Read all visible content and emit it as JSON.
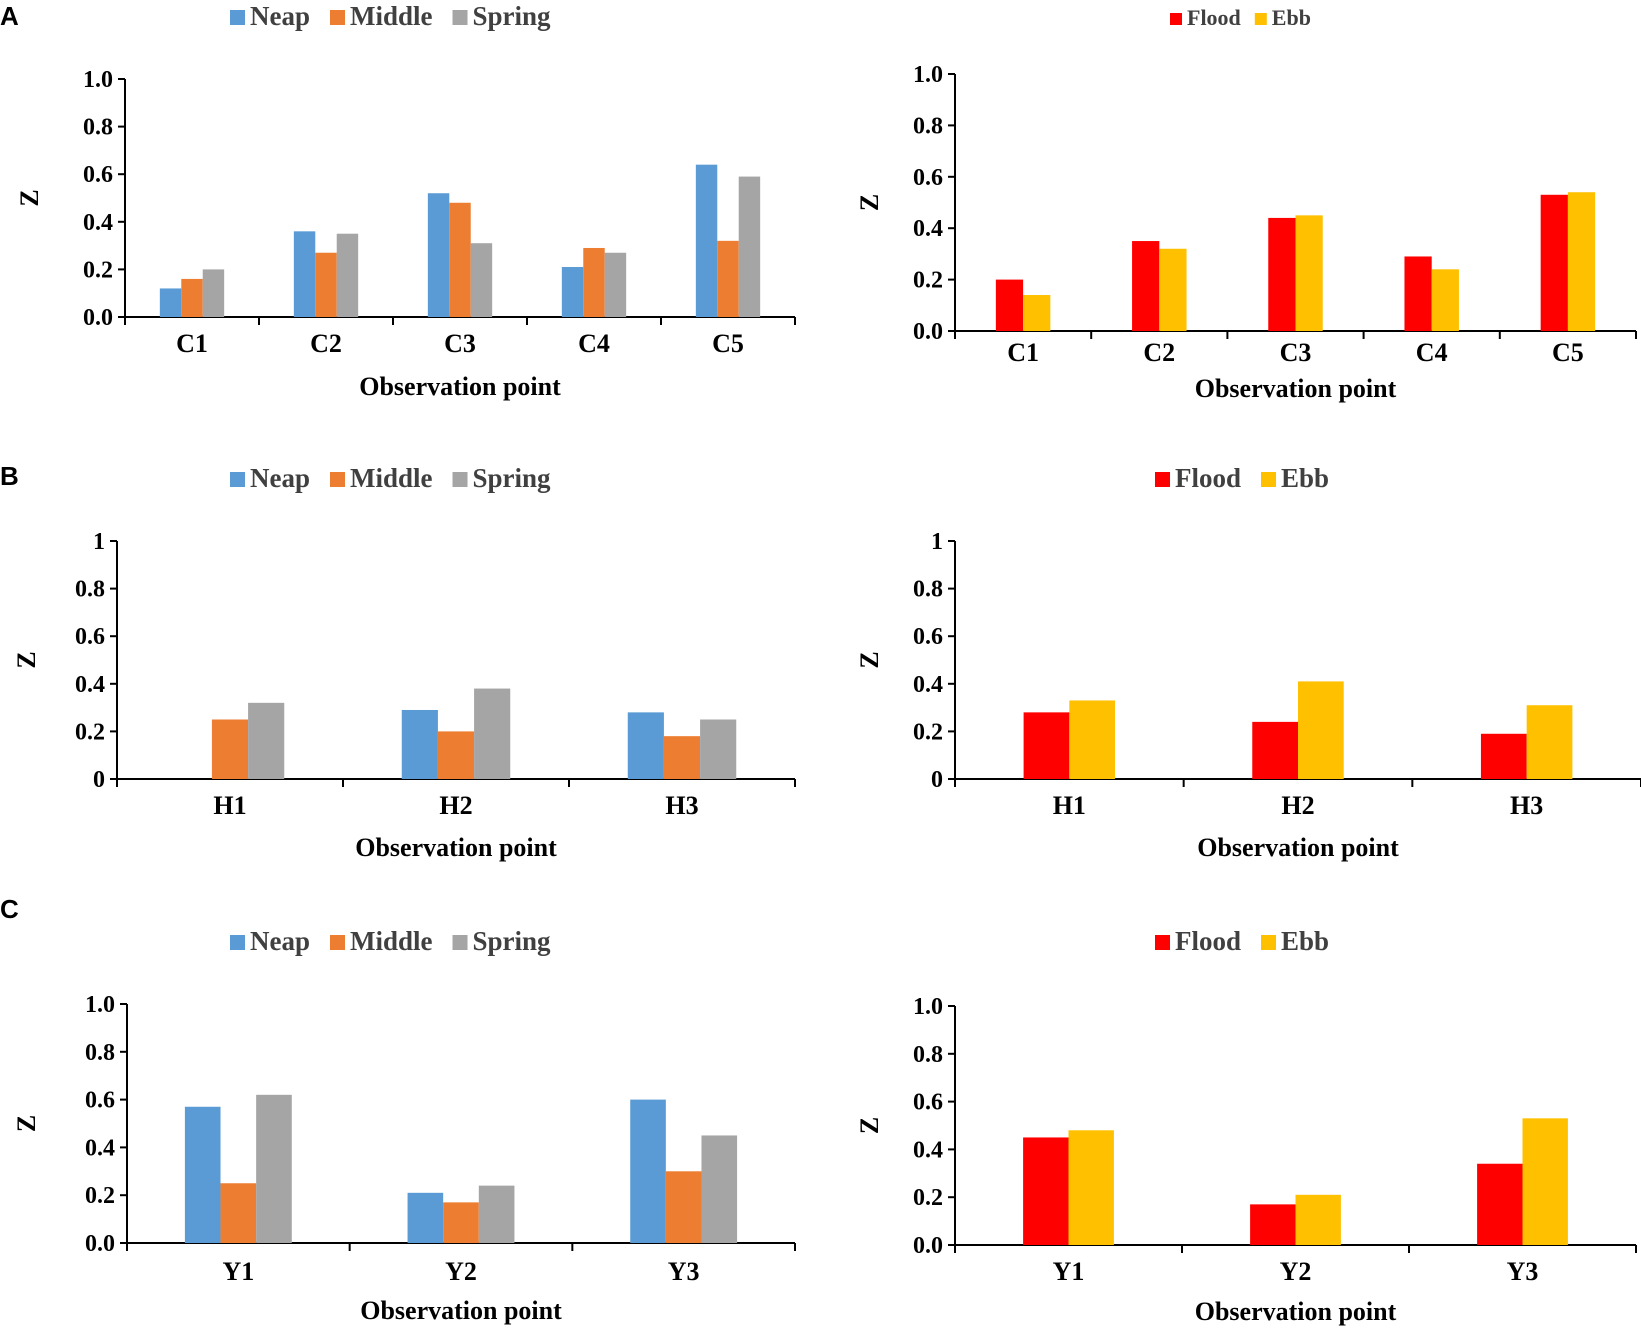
{
  "panel_labels": [
    "A",
    "B",
    "C"
  ],
  "colors": {
    "Neap": "#5b9bd5",
    "Middle": "#ed7d31",
    "Spring": "#a5a5a5",
    "Flood": "#ff0000",
    "Ebb": "#ffc000"
  },
  "chart_data": [
    {
      "id": "A-left",
      "type": "bar",
      "categories": [
        "C1",
        "C2",
        "C3",
        "C4",
        "C5"
      ],
      "series": [
        {
          "name": "Neap",
          "values": [
            0.12,
            0.36,
            0.52,
            0.21,
            0.64
          ]
        },
        {
          "name": "Middle",
          "values": [
            0.16,
            0.27,
            0.48,
            0.29,
            0.32
          ]
        },
        {
          "name": "Spring",
          "values": [
            0.2,
            0.35,
            0.31,
            0.27,
            0.59
          ]
        }
      ],
      "ylim": [
        0,
        1.0
      ],
      "yticks": [
        "0.0",
        "0.2",
        "0.4",
        "0.6",
        "0.8",
        "1.0"
      ],
      "xlabel": "Observation point",
      "ylabel": "Z",
      "legend": [
        "Neap",
        "Middle",
        "Spring"
      ]
    },
    {
      "id": "A-right",
      "type": "bar",
      "categories": [
        "C1",
        "C2",
        "C3",
        "C4",
        "C5"
      ],
      "series": [
        {
          "name": "Flood",
          "values": [
            0.2,
            0.35,
            0.44,
            0.29,
            0.53
          ]
        },
        {
          "name": "Ebb",
          "values": [
            0.14,
            0.32,
            0.45,
            0.24,
            0.54
          ]
        }
      ],
      "ylim": [
        0,
        1.0
      ],
      "yticks": [
        "0.0",
        "0.2",
        "0.4",
        "0.6",
        "0.8",
        "1.0"
      ],
      "xlabel": "Observation point",
      "ylabel": "Z",
      "legend": [
        "Flood",
        "Ebb"
      ]
    },
    {
      "id": "B-left",
      "type": "bar",
      "categories": [
        "H1",
        "H2",
        "H3"
      ],
      "series": [
        {
          "name": "Neap",
          "values": [
            0,
            0.29,
            0.28
          ]
        },
        {
          "name": "Middle",
          "values": [
            0.25,
            0.2,
            0.18
          ]
        },
        {
          "name": "Spring",
          "values": [
            0.32,
            0.38,
            0.25
          ]
        }
      ],
      "ylim": [
        0,
        1
      ],
      "yticks": [
        "0",
        "0.2",
        "0.4",
        "0.6",
        "0.8",
        "1"
      ],
      "xlabel": "Observation point",
      "ylabel": "Z",
      "legend": [
        "Neap",
        "Middle",
        "Spring"
      ]
    },
    {
      "id": "B-right",
      "type": "bar",
      "categories": [
        "H1",
        "H2",
        "H3"
      ],
      "series": [
        {
          "name": "Flood",
          "values": [
            0.28,
            0.24,
            0.19
          ]
        },
        {
          "name": "Ebb",
          "values": [
            0.33,
            0.41,
            0.31
          ]
        }
      ],
      "ylim": [
        0,
        1
      ],
      "yticks": [
        "0",
        "0.2",
        "0.4",
        "0.6",
        "0.8",
        "1"
      ],
      "xlabel": "Observation point",
      "ylabel": "Z",
      "legend": [
        "Flood",
        "Ebb"
      ]
    },
    {
      "id": "C-left",
      "type": "bar",
      "categories": [
        "Y1",
        "Y2",
        "Y3"
      ],
      "series": [
        {
          "name": "Neap",
          "values": [
            0.57,
            0.21,
            0.6
          ]
        },
        {
          "name": "Middle",
          "values": [
            0.25,
            0.17,
            0.3
          ]
        },
        {
          "name": "Spring",
          "values": [
            0.62,
            0.24,
            0.45
          ]
        }
      ],
      "ylim": [
        0,
        1.0
      ],
      "yticks": [
        "0.0",
        "0.2",
        "0.4",
        "0.6",
        "0.8",
        "1.0"
      ],
      "xlabel": "Observation point",
      "ylabel": "Z",
      "legend": [
        "Neap",
        "Middle",
        "Spring"
      ]
    },
    {
      "id": "C-right",
      "type": "bar",
      "categories": [
        "Y1",
        "Y2",
        "Y3"
      ],
      "series": [
        {
          "name": "Flood",
          "values": [
            0.45,
            0.17,
            0.34
          ]
        },
        {
          "name": "Ebb",
          "values": [
            0.48,
            0.21,
            0.53
          ]
        }
      ],
      "ylim": [
        0,
        1.0
      ],
      "yticks": [
        "0.0",
        "0.2",
        "0.4",
        "0.6",
        "0.8",
        "1.0"
      ],
      "xlabel": "Observation point",
      "ylabel": "Z",
      "legend": [
        "Flood",
        "Ebb"
      ]
    }
  ]
}
